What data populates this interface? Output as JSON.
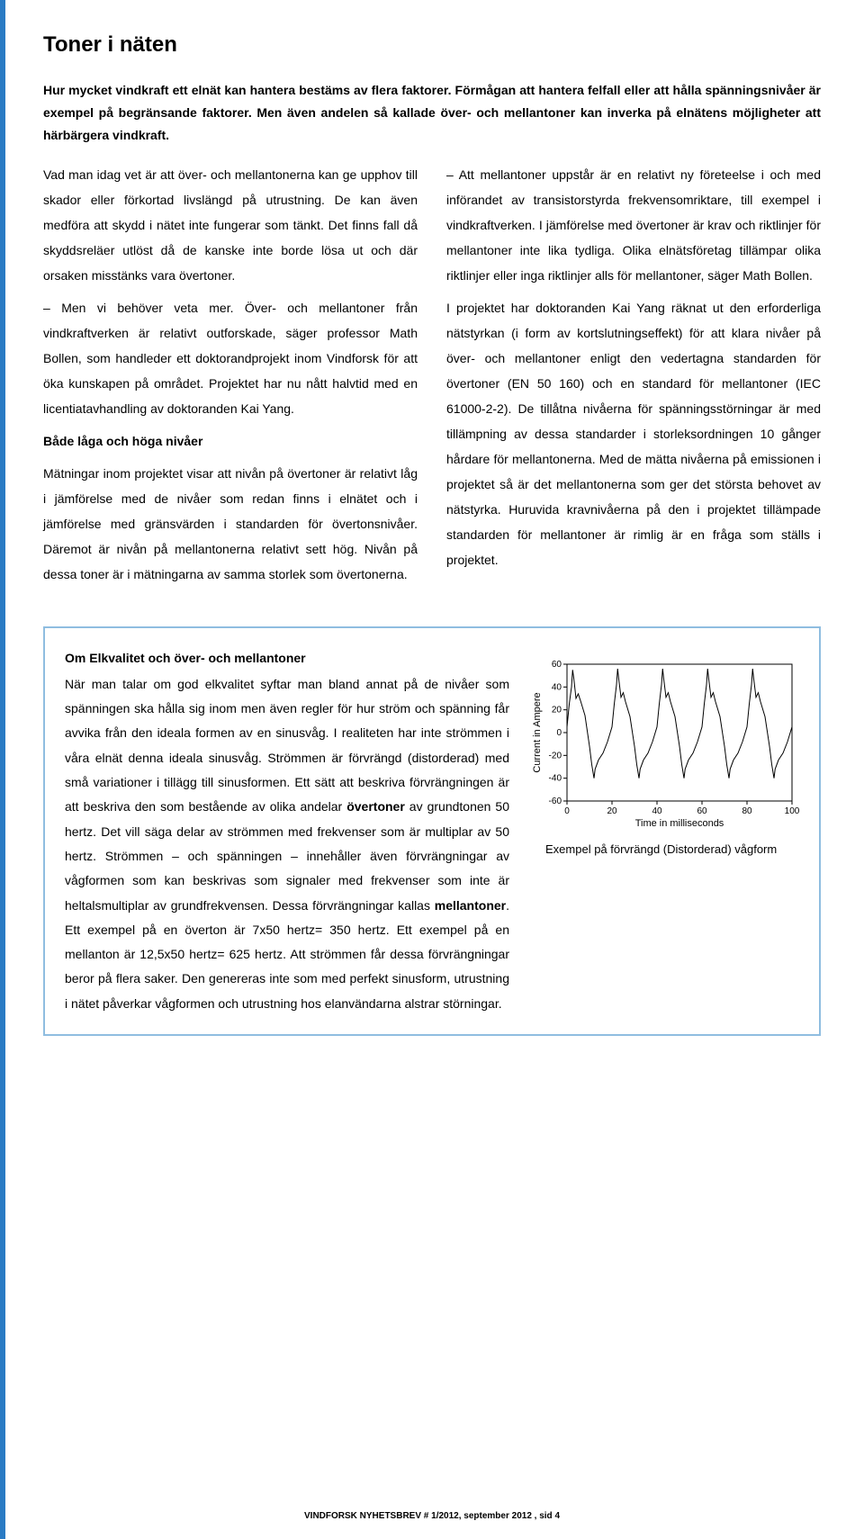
{
  "title": "Toner i näten",
  "intro": "Hur mycket vindkraft ett elnät kan hantera bestäms av flera faktorer. Förmågan att hantera felfall eller att hålla spänningsnivåer är exempel på begränsande faktorer. Men även andelen så kallade över- och mellantoner kan inverka på elnätens möjligheter att härbärgera vindkraft.",
  "col1": {
    "p1": "Vad man idag vet är att över- och mellantonerna kan ge upphov till skador eller förkortad livslängd på utrustning. De kan även medföra att skydd i nätet inte fungerar som tänkt. Det finns fall då skyddsreläer utlöst då de kanske inte borde lösa ut och där orsaken misstänks vara övertoner.",
    "p2": "– Men vi behöver veta mer. Över- och mellantoner från vindkraftverken är relativt outforskade, säger professor Math Bollen, som handleder ett doktorandprojekt inom Vindforsk för att öka kunskapen på området. Projektet har nu nått halvtid med en licentiatavhandling av doktoranden Kai Yang.",
    "subhead": "Både låga och höga nivåer",
    "p3": "Mätningar inom projektet visar att nivån på övertoner är relativt låg i jämförelse med de nivåer som redan finns i elnätet och i jämförelse med gränsvärden i standarden för övertonsnivåer. Däremot är nivån på mellantonerna relativt sett hög. Nivån på dessa toner är i mätningarna av samma storlek som övertonerna."
  },
  "col2": {
    "p1": "– Att mellantoner uppstår är en relativt ny företeelse i och med införandet av transistorstyrda frekvensomriktare, till exempel i vindkraftverken. I jämförelse med övertoner är krav och riktlinjer för mellantoner inte lika tydliga. Olika elnätsföretag tillämpar olika riktlinjer eller inga riktlinjer alls för mellantoner, säger Math Bollen.",
    "p2": "I projektet har doktoranden Kai Yang räknat ut den erforderliga nätstyrkan (i form av kortslutningseffekt) för att klara nivåer på över- och mellantoner enligt den vedertagna standarden för övertoner (EN 50 160) och en standard för mellantoner (IEC 61000-2-2). De tillåtna nivåerna för spänningsstörningar är med tillämpning av dessa standarder i storleksordningen 10 gånger hårdare för mellantonerna. Med de mätta nivåerna på emissionen i projektet så är det mellantonerna som ger det största behovet av nätstyrka. Huruvida kravnivåerna på den i projektet tillämpade standarden för mellantoner är rimlig är en fråga som ställs i projektet."
  },
  "infobox": {
    "title": "Om Elkvalitet och över- och mellantoner",
    "body_pre": "När man talar om god elkvalitet syftar man bland annat på de nivåer som spänningen ska hålla sig inom men även  regler för hur ström och spänning får avvika från den ideala formen av en sinusvåg. I realiteten har inte strömmen i våra elnät denna ideala sinusvåg. Strömmen är förvrängd (distorderad) med små variationer i tillägg till sinusformen. Ett sätt att beskriva förvrängningen är att beskriva den som bestående av olika andelar ",
    "bold1": "övertoner",
    "body_mid": " av grundtonen 50 hertz. Det vill säga delar av strömmen med frekvenser som är multiplar av 50 hertz. Strömmen – och spänningen – innehåller även förvrängningar av vågformen som kan beskrivas som signaler med frekvenser som inte är heltalsmultiplar av grundfrekvensen. Dessa förvrängningar kallas ",
    "bold2": "mellantoner",
    "body_post": ". Ett exempel på en överton är 7x50 hertz= 350 hertz. Ett exempel på en mellanton är 12,5x50 hertz= 625 hertz. Att strömmen får dessa förvrängningar beror på flera saker. Den genereras inte som med perfekt sinusform, utrustning i nätet påverkar vågformen och utrustning hos elanvändarna alstrar störningar.",
    "caption": "Exempel på förvrängd  (Distorderad) vågform"
  },
  "chart": {
    "type": "line",
    "xlabel": "Time in milliseconds",
    "ylabel": "Current in Ampere",
    "xlim": [
      0,
      100
    ],
    "ylim": [
      -60,
      60
    ],
    "xticks": [
      0,
      20,
      40,
      60,
      80,
      100
    ],
    "yticks": [
      -60,
      -40,
      -20,
      0,
      20,
      40,
      60
    ],
    "line_color": "#000000",
    "background_color": "#ffffff",
    "axis_color": "#000000",
    "tick_fontsize": 10,
    "label_fontsize": 11,
    "line_width": 1,
    "series": [
      {
        "x": 0,
        "y": 5
      },
      {
        "x": 1,
        "y": 25
      },
      {
        "x": 2,
        "y": 40
      },
      {
        "x": 2.5,
        "y": 55
      },
      {
        "x": 3,
        "y": 48
      },
      {
        "x": 4,
        "y": 30
      },
      {
        "x": 5,
        "y": 34
      },
      {
        "x": 6,
        "y": 28
      },
      {
        "x": 8,
        "y": 15
      },
      {
        "x": 10,
        "y": -12
      },
      {
        "x": 11,
        "y": -28
      },
      {
        "x": 12,
        "y": -40
      },
      {
        "x": 12.5,
        "y": -32
      },
      {
        "x": 14,
        "y": -24
      },
      {
        "x": 16,
        "y": -18
      },
      {
        "x": 18,
        "y": -8
      },
      {
        "x": 20,
        "y": 5
      },
      {
        "x": 21,
        "y": 25
      },
      {
        "x": 22,
        "y": 42
      },
      {
        "x": 22.5,
        "y": 56
      },
      {
        "x": 23,
        "y": 47
      },
      {
        "x": 24,
        "y": 31
      },
      {
        "x": 25,
        "y": 35
      },
      {
        "x": 26,
        "y": 27
      },
      {
        "x": 28,
        "y": 14
      },
      {
        "x": 30,
        "y": -12
      },
      {
        "x": 31,
        "y": -28
      },
      {
        "x": 32,
        "y": -40
      },
      {
        "x": 32.5,
        "y": -32
      },
      {
        "x": 34,
        "y": -24
      },
      {
        "x": 36,
        "y": -18
      },
      {
        "x": 38,
        "y": -8
      },
      {
        "x": 40,
        "y": 5
      },
      {
        "x": 41,
        "y": 25
      },
      {
        "x": 42,
        "y": 42
      },
      {
        "x": 42.5,
        "y": 56
      },
      {
        "x": 43,
        "y": 47
      },
      {
        "x": 44,
        "y": 31
      },
      {
        "x": 45,
        "y": 35
      },
      {
        "x": 46,
        "y": 27
      },
      {
        "x": 48,
        "y": 14
      },
      {
        "x": 50,
        "y": -12
      },
      {
        "x": 51,
        "y": -28
      },
      {
        "x": 52,
        "y": -40
      },
      {
        "x": 52.5,
        "y": -32
      },
      {
        "x": 54,
        "y": -24
      },
      {
        "x": 56,
        "y": -18
      },
      {
        "x": 58,
        "y": -8
      },
      {
        "x": 60,
        "y": 5
      },
      {
        "x": 61,
        "y": 25
      },
      {
        "x": 62,
        "y": 42
      },
      {
        "x": 62.5,
        "y": 56
      },
      {
        "x": 63,
        "y": 47
      },
      {
        "x": 64,
        "y": 31
      },
      {
        "x": 65,
        "y": 35
      },
      {
        "x": 66,
        "y": 27
      },
      {
        "x": 68,
        "y": 14
      },
      {
        "x": 70,
        "y": -12
      },
      {
        "x": 71,
        "y": -28
      },
      {
        "x": 72,
        "y": -40
      },
      {
        "x": 72.5,
        "y": -32
      },
      {
        "x": 74,
        "y": -24
      },
      {
        "x": 76,
        "y": -18
      },
      {
        "x": 78,
        "y": -8
      },
      {
        "x": 80,
        "y": 5
      },
      {
        "x": 81,
        "y": 25
      },
      {
        "x": 82,
        "y": 42
      },
      {
        "x": 82.5,
        "y": 56
      },
      {
        "x": 83,
        "y": 47
      },
      {
        "x": 84,
        "y": 31
      },
      {
        "x": 85,
        "y": 35
      },
      {
        "x": 86,
        "y": 27
      },
      {
        "x": 88,
        "y": 14
      },
      {
        "x": 90,
        "y": -12
      },
      {
        "x": 91,
        "y": -28
      },
      {
        "x": 92,
        "y": -40
      },
      {
        "x": 92.5,
        "y": -32
      },
      {
        "x": 94,
        "y": -24
      },
      {
        "x": 96,
        "y": -18
      },
      {
        "x": 98,
        "y": -8
      },
      {
        "x": 100,
        "y": 5
      }
    ]
  },
  "footer": "VINDFORSK NYHETSBREV # 1/2012, september 2012 , sid  4"
}
